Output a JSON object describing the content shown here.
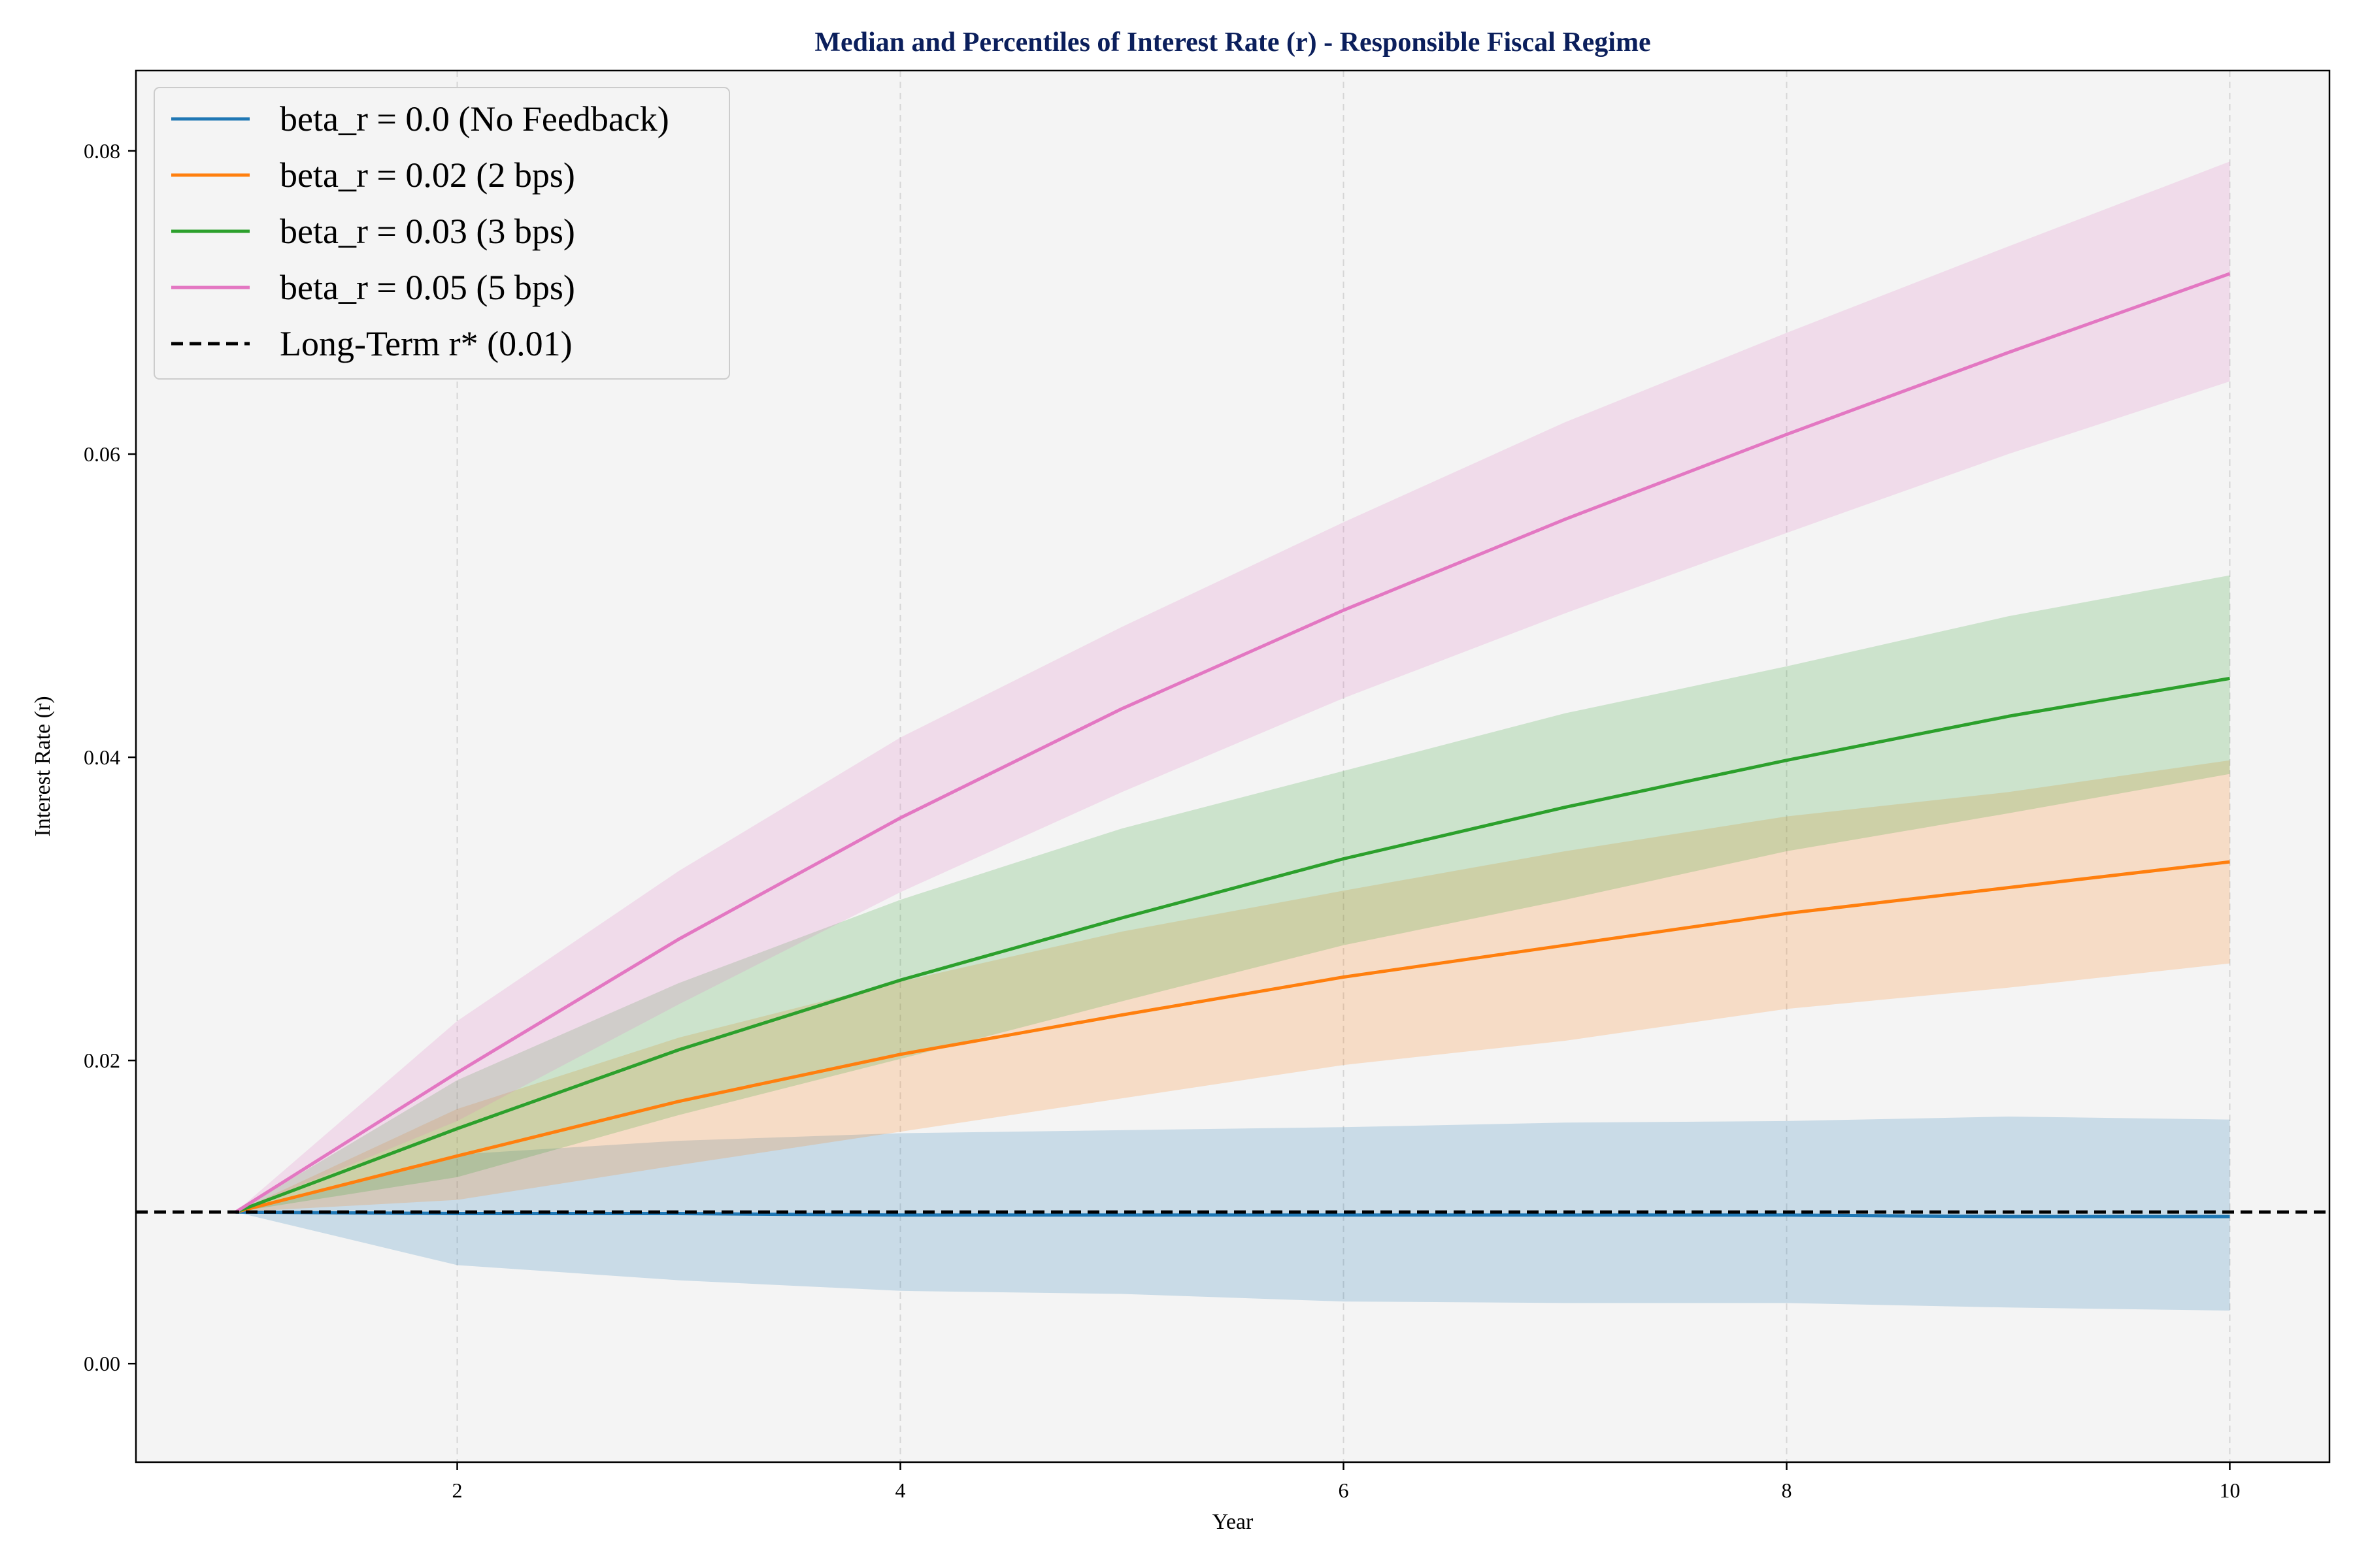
{
  "chart_data": {
    "type": "line",
    "title": "Median and Percentiles of Interest Rate (r) - Responsible Fiscal Regime",
    "xlabel": "Year",
    "ylabel": "Interest Rate (r)",
    "xlim": [
      0.55,
      10.45
    ],
    "ylim": [
      -0.0065,
      0.0853
    ],
    "x_ticks": [
      2,
      4,
      6,
      8,
      10
    ],
    "y_ticks": [
      0.0,
      0.02,
      0.04,
      0.06,
      0.08
    ],
    "x_tick_labels": [
      "2",
      "4",
      "6",
      "8",
      "10"
    ],
    "y_tick_labels": [
      "0.00",
      "0.02",
      "0.04",
      "0.06",
      "0.08"
    ],
    "grid": "x-axis dashed",
    "legend_position": "top-left",
    "x": [
      1,
      2,
      3,
      4,
      5,
      6,
      7,
      8,
      9,
      10
    ],
    "series": [
      {
        "name": "beta_r = 0.0 (No Feedback)",
        "color": "#1f77b4",
        "median": [
          0.01,
          0.0099,
          0.0099,
          0.0098,
          0.0098,
          0.0098,
          0.0098,
          0.0098,
          0.0097,
          0.0097
        ],
        "lower": [
          0.01,
          0.0065,
          0.0055,
          0.0048,
          0.0046,
          0.0041,
          0.004,
          0.004,
          0.0037,
          0.0035
        ],
        "upper": [
          0.01,
          0.0138,
          0.0147,
          0.0152,
          0.0154,
          0.0156,
          0.0159,
          0.016,
          0.0163,
          0.0161
        ]
      },
      {
        "name": "beta_r = 0.02 (2 bps)",
        "color": "#ff7f0e",
        "median": [
          0.01,
          0.0137,
          0.0173,
          0.0204,
          0.023,
          0.0255,
          0.0276,
          0.0297,
          0.0314,
          0.0331
        ],
        "lower": [
          0.01,
          0.0108,
          0.0131,
          0.0153,
          0.0175,
          0.0197,
          0.0213,
          0.0234,
          0.0248,
          0.0264
        ],
        "upper": [
          0.01,
          0.0168,
          0.0215,
          0.0252,
          0.0285,
          0.0312,
          0.0338,
          0.0361,
          0.0377,
          0.0398
        ]
      },
      {
        "name": "beta_r = 0.03 (3 bps)",
        "color": "#2ca02c",
        "median": [
          0.01,
          0.0155,
          0.0207,
          0.0253,
          0.0294,
          0.0333,
          0.0367,
          0.0398,
          0.0427,
          0.0452
        ],
        "lower": [
          0.01,
          0.0123,
          0.0164,
          0.0201,
          0.0239,
          0.0276,
          0.0306,
          0.0338,
          0.0363,
          0.0389
        ],
        "upper": [
          0.01,
          0.0187,
          0.0251,
          0.0306,
          0.0353,
          0.0391,
          0.0429,
          0.046,
          0.0493,
          0.052
        ]
      },
      {
        "name": "beta_r = 0.05 (5 bps)",
        "color": "#e377c2",
        "median": [
          0.01,
          0.0192,
          0.028,
          0.036,
          0.0432,
          0.0497,
          0.0557,
          0.0613,
          0.0667,
          0.0719
        ],
        "lower": [
          0.01,
          0.016,
          0.0237,
          0.0311,
          0.0377,
          0.0439,
          0.0495,
          0.0548,
          0.06,
          0.0648
        ],
        "upper": [
          0.01,
          0.0226,
          0.0325,
          0.0413,
          0.0486,
          0.0555,
          0.0621,
          0.068,
          0.0737,
          0.0793
        ]
      }
    ],
    "reference_line": {
      "name": "Long-Term r* (0.01)",
      "value": 0.01,
      "color": "#000000",
      "style": "dashed"
    },
    "colors": {
      "plot_background": "#f4f4f4",
      "title_color": "#0b1f5c"
    }
  }
}
